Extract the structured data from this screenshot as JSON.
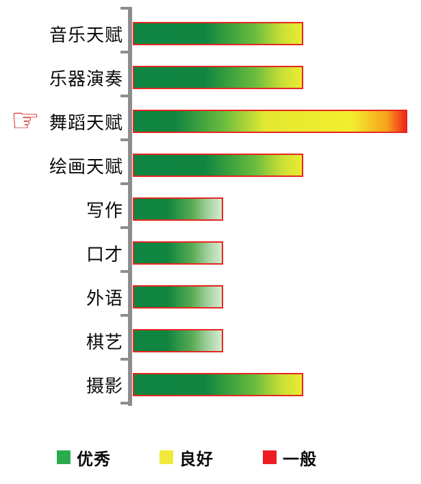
{
  "chart_data": {
    "type": "bar",
    "orientation": "horizontal",
    "title": "",
    "xlabel": "",
    "ylabel": "",
    "categories": [
      "音乐天赋",
      "乐器演奏",
      "舞蹈天赋",
      "绘画天赋",
      "写作",
      "口才",
      "外语",
      "棋艺",
      "摄影"
    ],
    "values": [
      62,
      62,
      100,
      62,
      33,
      33,
      33,
      33,
      62
    ],
    "xlim": [
      0,
      100
    ],
    "grid": false,
    "legend_position": "bottom",
    "highlighted_category": "舞蹈天赋",
    "bar_color_zones": [
      "green-yellow",
      "green-yellow",
      "green-yellow-red",
      "green-yellow",
      "green-fade",
      "green-fade",
      "green-fade",
      "green-fade",
      "green-yellow"
    ]
  },
  "legend": {
    "items": [
      {
        "label": "优秀",
        "color": "#2cab4e"
      },
      {
        "label": "良好",
        "color": "#f0e93a"
      },
      {
        "label": "一般",
        "color": "#ee1d24"
      }
    ]
  },
  "icons": {
    "pointer": {
      "glyph": "☞",
      "color": "#d01f1f",
      "points_to": "舞蹈天赋"
    }
  },
  "colors": {
    "bar_green": "#0f8540",
    "bar_yellow": "#eaeb2f",
    "bar_red": "#ee2418",
    "bar_fade": "#d6ebd3",
    "bar_border": "#e6251f",
    "axis": "#8c8c8c"
  }
}
